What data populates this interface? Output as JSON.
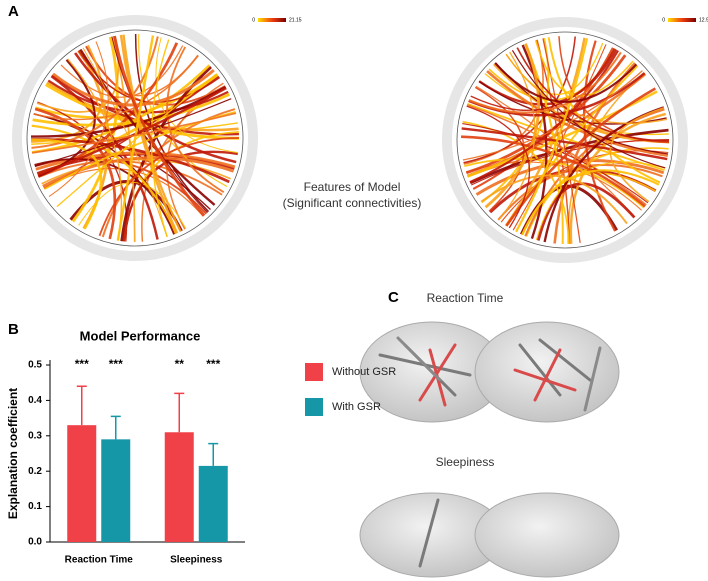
{
  "figure": {
    "panel_labels": [
      "A",
      "B",
      "C"
    ],
    "center_caption": [
      "Features of Model",
      "(Significant connectivities)"
    ],
    "colorbars": [
      {
        "min": "0",
        "max": "21.15"
      },
      {
        "min": "0",
        "max": "12.93"
      }
    ],
    "brain_titles": [
      "Reaction Time",
      "Sleepiness"
    ]
  },
  "chart_data": {
    "type": "bar",
    "title": "Model Performance",
    "ylabel": "Explanation coefficient",
    "categories": [
      "Reaction Time",
      "Sleepiness"
    ],
    "series": [
      {
        "name": "Without GSR",
        "color": "#f04148",
        "values": [
          0.33,
          0.31
        ],
        "errors": [
          0.11,
          0.11
        ],
        "significance": [
          "***",
          "**"
        ]
      },
      {
        "name": "With GSR",
        "color": "#1597a8",
        "values": [
          0.29,
          0.215
        ],
        "errors": [
          0.065,
          0.063
        ],
        "significance": [
          "***",
          "***"
        ]
      }
    ],
    "ylim": [
      0,
      0.5
    ],
    "yticks": [
      {
        "value": 0,
        "label": "0.0"
      },
      0.1,
      0.2,
      0.3,
      0.4,
      0.5
    ],
    "legend": "right"
  }
}
